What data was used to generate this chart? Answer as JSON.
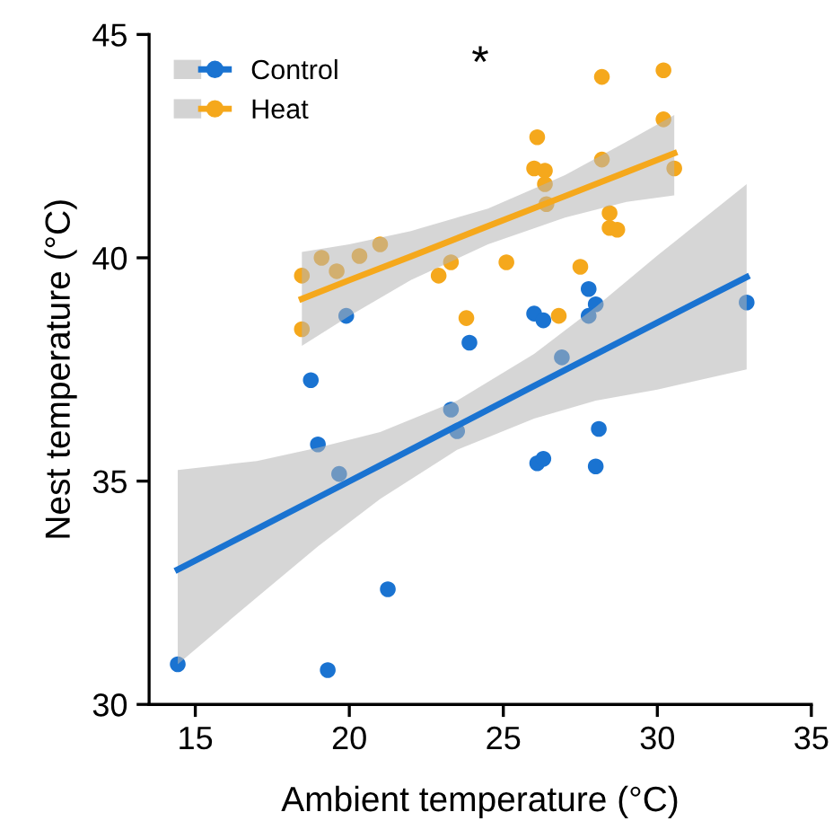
{
  "chart_data": {
    "type": "scatter",
    "xlabel": "Ambient temperature (°C)",
    "ylabel": "Nest temperature (°C)",
    "xlim": [
      13.5,
      35
    ],
    "ylim": [
      30,
      45
    ],
    "xticks": [
      15,
      20,
      25,
      30,
      35
    ],
    "yticks": [
      30,
      35,
      40,
      45
    ],
    "grid": false,
    "legend": "top left",
    "marker": "circle",
    "annotations": [
      "*"
    ],
    "series": [
      {
        "name": "Control",
        "color": "#1a73d1",
        "x": [
          19.9,
          23.9,
          26.0,
          26.3,
          27.77,
          28.0,
          27.77,
          32.9,
          26.9,
          18.75,
          18.98,
          19.67,
          23.3,
          23.5,
          26.1,
          26.3,
          28.1,
          28.0,
          21.25,
          14.43,
          19.3
        ],
        "values": [
          38.7,
          38.1,
          38.75,
          38.6,
          39.3,
          38.96,
          38.7,
          39.0,
          37.77,
          37.26,
          35.82,
          35.16,
          36.6,
          36.12,
          35.4,
          35.5,
          36.17,
          35.33,
          32.58,
          30.9,
          30.77
        ]
      },
      {
        "name": "Heat",
        "color": "#f5a81c",
        "x": [
          18.46,
          19.1,
          19.59,
          20.33,
          21.0,
          18.46,
          22.9,
          23.3,
          23.8,
          25.1,
          26.1,
          26.0,
          26.35,
          26.35,
          26.4,
          26.8,
          27.5,
          28.2,
          28.2,
          28.45,
          28.45,
          28.7,
          30.2,
          30.2,
          30.55
        ],
        "values": [
          39.6,
          40.0,
          39.7,
          40.04,
          40.3,
          38.4,
          39.6,
          39.9,
          38.65,
          39.9,
          42.7,
          42.0,
          41.95,
          41.65,
          41.2,
          38.7,
          39.8,
          44.05,
          42.2,
          41.0,
          40.67,
          40.63,
          44.2,
          43.1,
          42.0
        ]
      },
      {
        "type": "line",
        "marker": "none",
        "color": "#1a73d1",
        "x": [
          14.43,
          17,
          19,
          21,
          23.5,
          26,
          28,
          30,
          32.9
        ],
        "values": [
          33.02,
          33.93,
          34.64,
          35.35,
          36.24,
          37.13,
          37.84,
          38.55,
          39.57
        ],
        "lower": [
          30.9,
          32.4,
          33.55,
          34.6,
          35.7,
          36.4,
          36.8,
          37.05,
          37.5
        ],
        "upper": [
          35.25,
          35.45,
          35.75,
          36.1,
          36.8,
          37.85,
          38.9,
          40.05,
          41.65
        ]
      },
      {
        "type": "line",
        "marker": "none",
        "color": "#f5a81c",
        "x": [
          18.46,
          20,
          22,
          24.5,
          27,
          29,
          30.55
        ],
        "values": [
          39.08,
          39.5,
          40.03,
          40.71,
          41.38,
          41.92,
          42.34
        ],
        "lower": [
          38.03,
          38.7,
          39.5,
          40.3,
          40.9,
          41.25,
          41.4
        ],
        "upper": [
          40.13,
          40.3,
          40.6,
          41.1,
          41.85,
          42.6,
          43.2
        ]
      }
    ]
  }
}
